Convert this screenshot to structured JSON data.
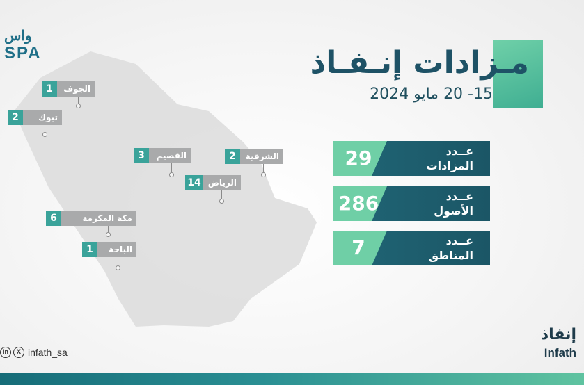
{
  "header": {
    "logo_top": "واس",
    "logo_bottom": "SPA",
    "title": "مـزادات إنـفـاذ",
    "date": "15- 20 مايو 2024"
  },
  "stats": [
    {
      "value": "29",
      "label_line1": "عــدد",
      "label_line2": "المزادات"
    },
    {
      "value": "286",
      "label_line1": "عــدد",
      "label_line2": "الأصول"
    },
    {
      "value": "7",
      "label_line1": "عــدد",
      "label_line2": "المناطق"
    }
  ],
  "regions": [
    {
      "name": "الجوف",
      "count": "1"
    },
    {
      "name": "تبوك",
      "count": "2"
    },
    {
      "name": "القصيم",
      "count": "3"
    },
    {
      "name": "الشرقية",
      "count": "2"
    },
    {
      "name": "الرياض",
      "count": "14"
    },
    {
      "name": "مكة المكرمة",
      "count": "6"
    },
    {
      "name": "الباحة",
      "count": "1"
    }
  ],
  "footer": {
    "linkedin_icon": "linkedin-icon",
    "x_icon": "x-icon",
    "handle": "infath_sa",
    "brand_ar": "إنفاذ",
    "brand_en": "Infath"
  },
  "colors": {
    "dark_teal": "#1f6272",
    "mint": "#6fcfa6",
    "label_gray": "#a9aaab",
    "count_teal": "#3aa39a",
    "map_fill": "#dcdcdc"
  }
}
